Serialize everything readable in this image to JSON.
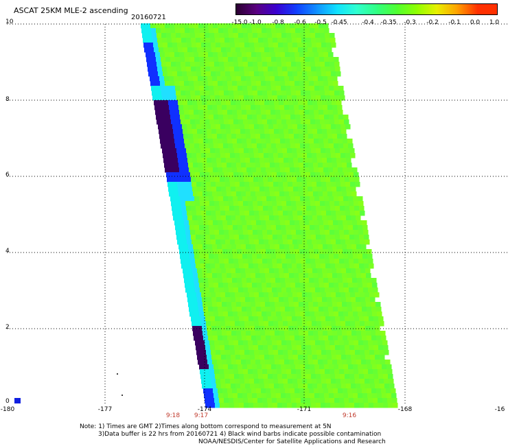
{
  "header": {
    "title": "ASCAT 25KM MLE-2 ascending",
    "date": "20160721"
  },
  "colorbar": {
    "labels": [
      "-15.0",
      "-1.0",
      "-0.8",
      "-0.6",
      "-0.5",
      "-0.45",
      "-0.4",
      "-0.35",
      "-0.3",
      "-0.2",
      "-0.1",
      "0.0",
      "1.0"
    ],
    "colors": [
      "#2a0030",
      "#5a0080",
      "#3a00d0",
      "#1040ff",
      "#1090ff",
      "#10e0ff",
      "#30ffd0",
      "#30ff80",
      "#50ff30",
      "#90ff00",
      "#e8f000",
      "#ffa000",
      "#ff3000"
    ]
  },
  "map": {
    "lat_labels": [
      "10",
      "8",
      "6",
      "4",
      "2",
      "0"
    ],
    "lon_labels": [
      "-180",
      "-177",
      "-174",
      "-171",
      "-168",
      "-16"
    ],
    "grid": true
  },
  "times": [
    "9:18",
    "9:17",
    "9:16"
  ],
  "notes": [
    "Note: 1) Times are GMT 2)Times along bottom correspond to measurement at 5N",
    "3)Data buffer is 22 hrs from 20160721 4) Black wind barbs indicate possible contamination",
    "NOAA/NESDIS/Center for Satellite Applications and Research"
  ],
  "colors": {
    "swath_main": "#7fff20",
    "swath_alt": "#66ff33",
    "edge_cyan": "#10f0f0",
    "edge_blue": "#1030ff",
    "edge_purple": "#3a0060",
    "grid": "#000000"
  }
}
